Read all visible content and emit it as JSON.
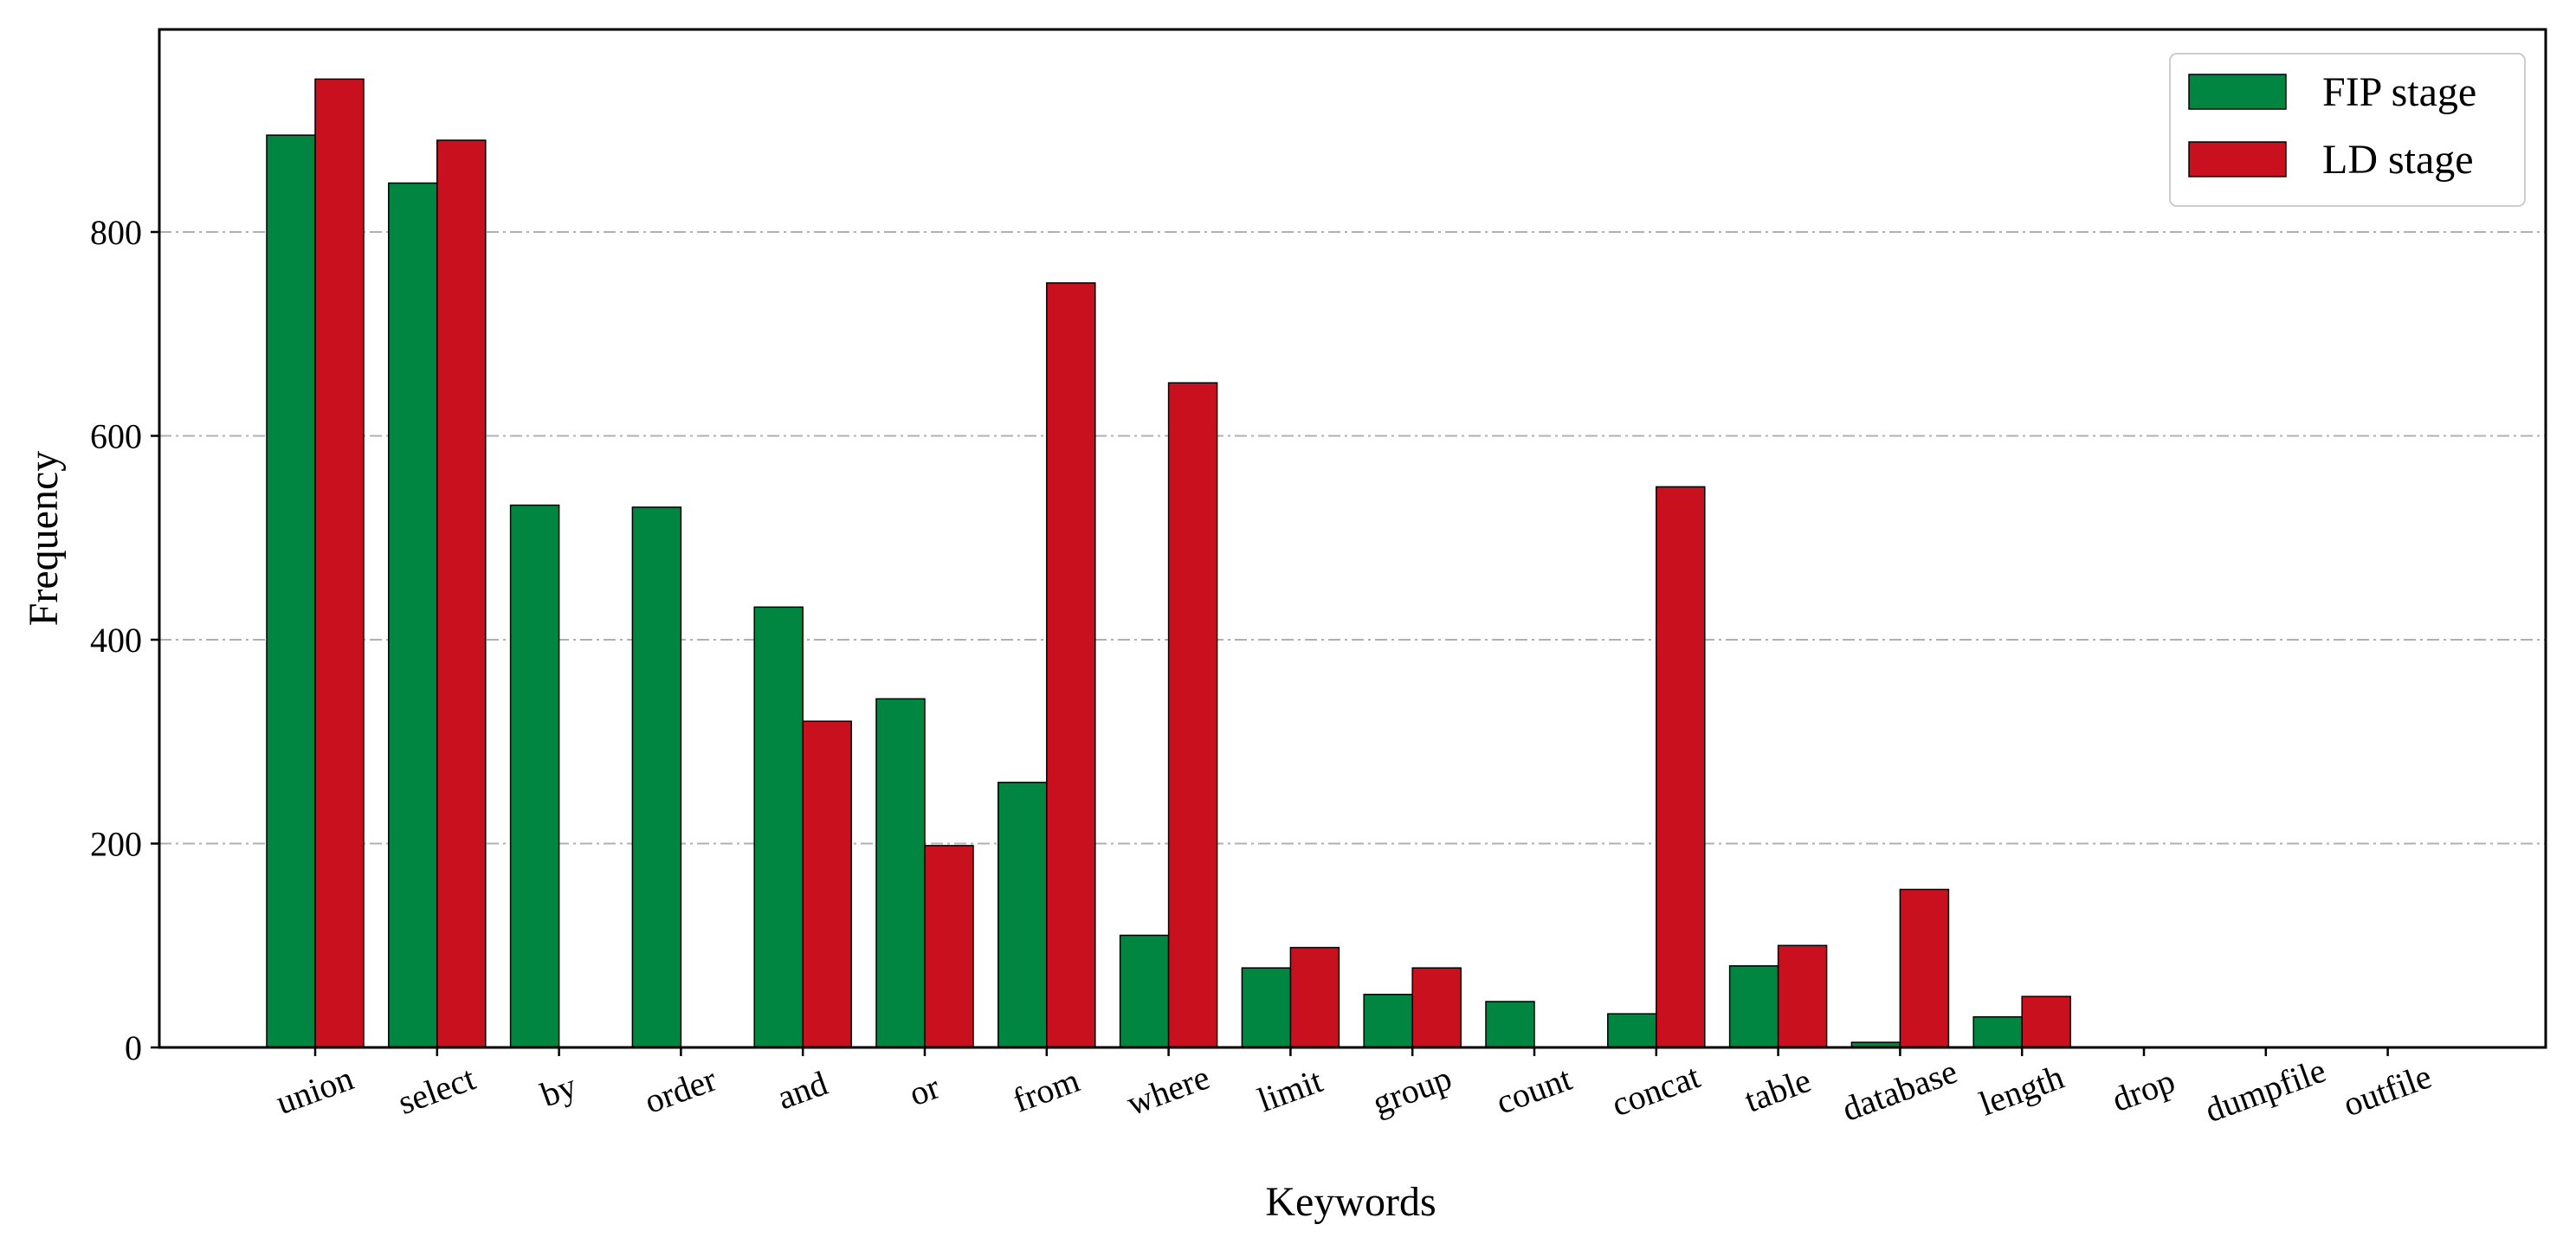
{
  "chart_data": {
    "type": "bar",
    "xlabel": "Keywords",
    "ylabel": "Frequency",
    "ylim": [
      0,
      1000
    ],
    "yticks": [
      0,
      200,
      400,
      600,
      800
    ],
    "grid": "horizontal dash-dot",
    "legend_position": "top-right",
    "categories": [
      "union",
      "select",
      "by",
      "order",
      "and",
      "or",
      "from",
      "where",
      "limit",
      "group",
      "count",
      "concat",
      "table",
      "database",
      "length",
      "drop",
      "dumpfile",
      "outfile"
    ],
    "series": [
      {
        "name": "FIP stage",
        "color": "#008640",
        "values": [
          895,
          848,
          532,
          530,
          432,
          342,
          260,
          110,
          78,
          52,
          45,
          33,
          80,
          5,
          30,
          0,
          0,
          0
        ]
      },
      {
        "name": "LD stage",
        "color": "#c8101f",
        "values": [
          950,
          890,
          0,
          0,
          320,
          198,
          750,
          652,
          98,
          78,
          0,
          550,
          100,
          155,
          50,
          0,
          0,
          0
        ]
      }
    ]
  }
}
